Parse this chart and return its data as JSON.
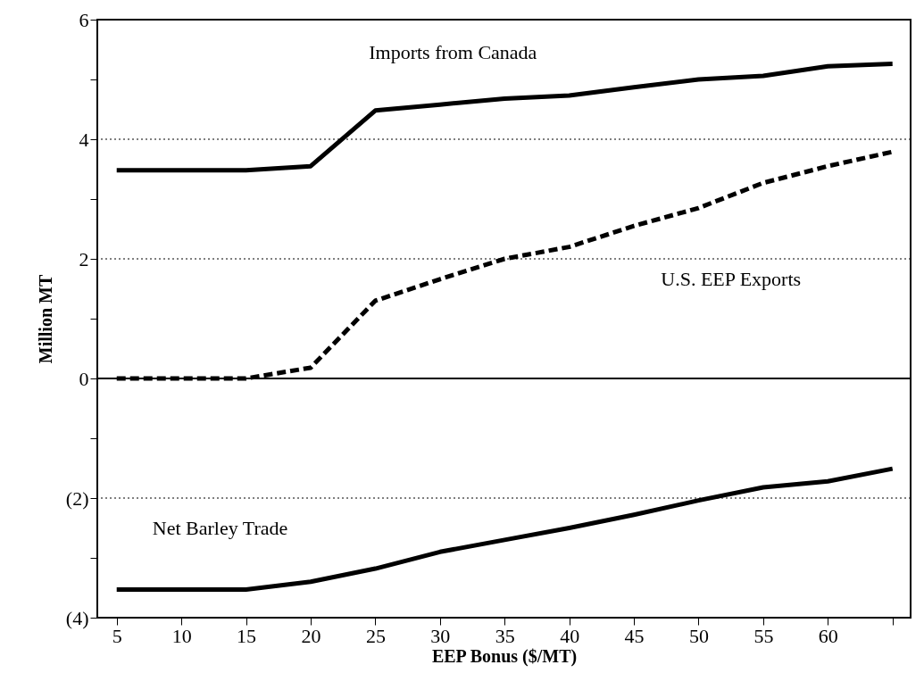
{
  "chart_data": {
    "type": "line",
    "xlabel": "EEP Bonus ($/MT)",
    "ylabel": "Million MT",
    "x": [
      5,
      10,
      15,
      20,
      25,
      30,
      35,
      40,
      45,
      50,
      55,
      60,
      65
    ],
    "series": [
      {
        "name": "Imports from Canada",
        "color": "#000000",
        "line_style": "solid",
        "values": [
          3.48,
          3.48,
          3.48,
          3.55,
          4.48,
          4.58,
          4.68,
          4.73,
          4.87,
          5.0,
          5.06,
          5.22,
          5.26
        ]
      },
      {
        "name": "U.S. EEP Exports",
        "color": "#000000",
        "line_style": "dashed",
        "values": [
          0,
          0,
          0,
          0.18,
          1.3,
          1.66,
          2.0,
          2.2,
          2.55,
          2.85,
          3.27,
          3.55,
          3.79
        ]
      },
      {
        "name": "Net Barley Trade",
        "color": "#000000",
        "line_style": "solid",
        "values": [
          -3.53,
          -3.53,
          -3.53,
          -3.4,
          -3.18,
          -2.9,
          -2.7,
          -2.5,
          -2.28,
          -2.04,
          -1.82,
          -1.72,
          -1.51
        ]
      }
    ],
    "xlim": [
      3.5,
      66.4
    ],
    "xticks": [
      5,
      10,
      15,
      20,
      25,
      30,
      35,
      40,
      45,
      50,
      55,
      60,
      {
        "value": 65,
        "label": null
      }
    ],
    "ylim": [
      -4,
      6
    ],
    "yticks": [
      {
        "value": -4,
        "label": "(4)"
      },
      {
        "value": -3,
        "label": null
      },
      {
        "value": -2,
        "label": "(2)"
      },
      {
        "value": -1,
        "label": null
      },
      0,
      {
        "value": 1,
        "label": null
      },
      2,
      {
        "value": 3,
        "label": null
      },
      4,
      {
        "value": 5,
        "label": null
      },
      6
    ],
    "grid": "y",
    "ref_lines": [
      {
        "axis": "y",
        "value": 0,
        "label": null
      }
    ],
    "marker": "none"
  }
}
